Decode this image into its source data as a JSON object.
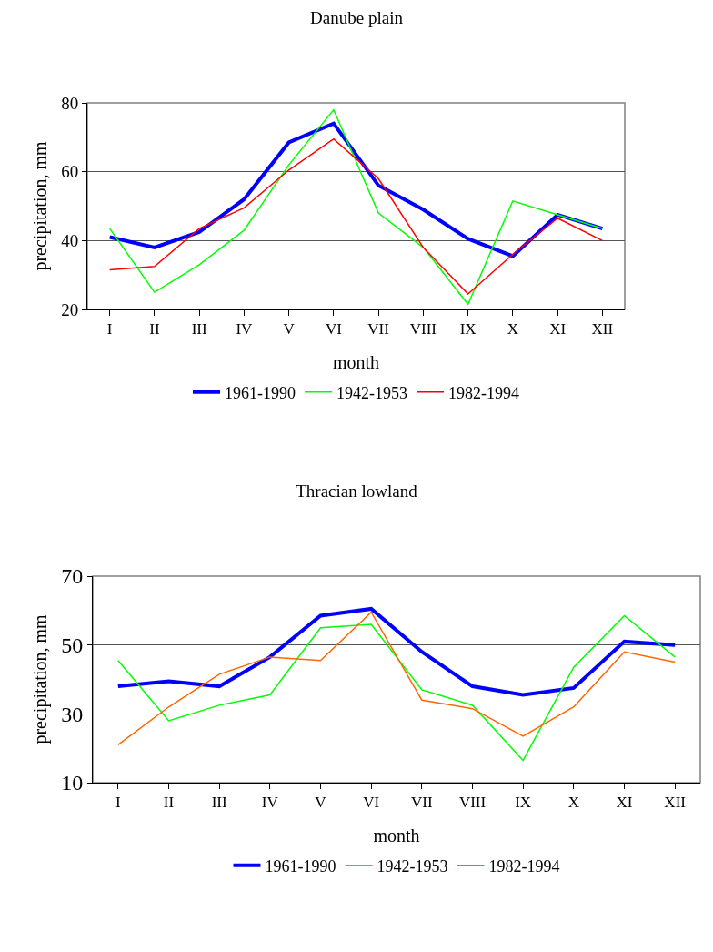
{
  "chart_data": [
    {
      "type": "line",
      "title": "Danube plain",
      "xlabel": "month",
      "ylabel": "precipitation, mm",
      "categories": [
        "I",
        "II",
        "III",
        "IV",
        "V",
        "VI",
        "VII",
        "VIII",
        "IX",
        "X",
        "XI",
        "XII"
      ],
      "series": [
        {
          "name": "1961-1990",
          "color": "#0000ff",
          "values": [
            41,
            38,
            42.5,
            52,
            68.5,
            74,
            56,
            49,
            40.5,
            35.5,
            47.5,
            43.5
          ]
        },
        {
          "name": "1942-1953",
          "color": "#00ff00",
          "values": [
            43.5,
            25,
            33,
            43,
            62,
            78,
            48,
            38,
            21.5,
            51.5,
            47.5,
            43.5
          ]
        },
        {
          "name": "1982-1994",
          "color": "#ff0000",
          "values": [
            31.5,
            32.5,
            43.5,
            49.5,
            60.5,
            69.5,
            58,
            38,
            24.5,
            36,
            46.5,
            40
          ]
        }
      ],
      "ylim": [
        20,
        80
      ],
      "yticks": [
        20,
        40,
        60,
        80
      ],
      "grid": "y",
      "legend": "bottom"
    },
    {
      "type": "line",
      "title": "Thracian lowland",
      "xlabel": "month",
      "ylabel": "precipitation, mm",
      "categories": [
        "I",
        "II",
        "III",
        "IV",
        "V",
        "VI",
        "VII",
        "VIII",
        "IX",
        "X",
        "XI",
        "XII"
      ],
      "series": [
        {
          "name": "1961-1990",
          "color": "#0000ff",
          "values": [
            38,
            39.5,
            38,
            46.5,
            58.5,
            60.5,
            48,
            38,
            35.5,
            37.5,
            51,
            50
          ]
        },
        {
          "name": "1942-1953",
          "color": "#00ff00",
          "values": [
            45.5,
            28,
            32.5,
            35.5,
            55,
            56,
            37,
            32.5,
            16.5,
            43.5,
            58.5,
            46.5
          ]
        },
        {
          "name": "1982-1994",
          "color": "#ff6600",
          "values": [
            21,
            32,
            41.5,
            46.5,
            45.5,
            59.5,
            34,
            31.5,
            23.5,
            32,
            48,
            45
          ]
        }
      ],
      "ylim": [
        10,
        70
      ],
      "yticks": [
        10,
        30,
        50,
        70
      ],
      "grid": "y",
      "legend": "bottom"
    }
  ]
}
